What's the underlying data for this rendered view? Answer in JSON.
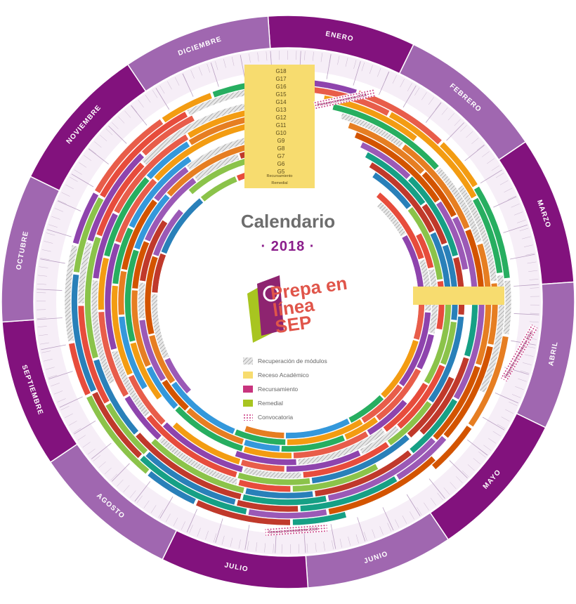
{
  "title": "Calendario",
  "year": "· 2018 ·",
  "logo": {
    "line1": "Prepa en",
    "line2": "línea",
    "line3": "SEP"
  },
  "months": [
    "ENERO",
    "FEBRERO",
    "MARZO",
    "ABRIL",
    "MAYO",
    "JUNIO",
    "JULIO",
    "AGOSTO",
    "SEPTIEMBRE",
    "OCTUBRE",
    "NOVIEMBRE",
    "DICIEMBRE"
  ],
  "groups": [
    "G18",
    "G17",
    "G16",
    "G15",
    "G14",
    "G13",
    "G12",
    "G11",
    "G10",
    "G9",
    "G8",
    "G7",
    "G6",
    "G5"
  ],
  "group_footer": [
    "Recursamiento",
    "Remedial"
  ],
  "legend": [
    {
      "label": "Recuperación de módulos",
      "kind": "hatch",
      "color": "#b0b0b0"
    },
    {
      "label": "Receso Académico",
      "kind": "solid",
      "color": "#f7dc6f"
    },
    {
      "label": "Recursamiento",
      "kind": "solid",
      "color": "#c8347e"
    },
    {
      "label": "Remedial",
      "kind": "solid",
      "color": "#a8c520"
    },
    {
      "label": "Convocatoria",
      "kind": "dots",
      "color": "#c8347e"
    }
  ],
  "annotations": [
    "Primera convocatoria 2018",
    "Segunda convocatoria 2018",
    "Tercera convocatoria 2018"
  ],
  "ring_colors": [
    "#8e44ad",
    "#e85d4a",
    "#f39c12",
    "#27ae60",
    "#3498db",
    "#e67e22",
    "#d35400",
    "#9b59b6",
    "#16a085",
    "#c0392b",
    "#2980b9",
    "#8bc34a",
    "#e74c3c",
    "#f1c40f"
  ],
  "colors": {
    "month_dark": "#82127d",
    "month_light": "#a067b0",
    "receso": "#f7dc6f"
  }
}
